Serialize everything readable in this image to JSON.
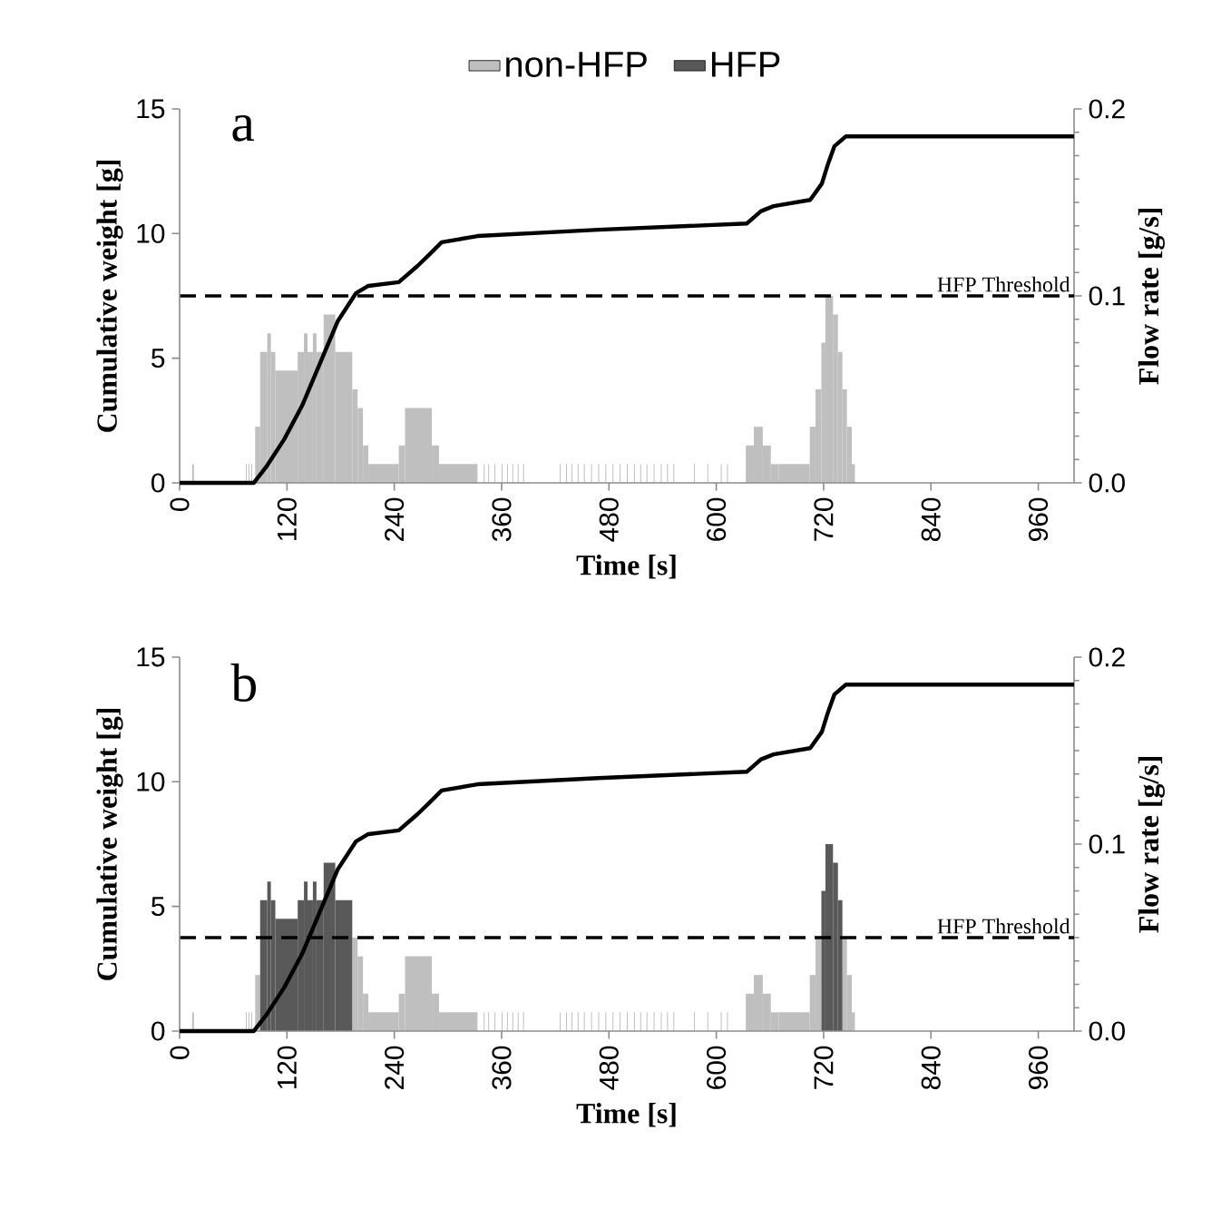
{
  "chart_data": [
    {
      "type": "histogram",
      "xlabel": "Time [s]",
      "ylabel": "Cumulative weight [g]",
      "y2label": "Flow rate [g/s]",
      "annotations": [
        "a"
      ],
      "xlim": [
        0,
        1000
      ],
      "xticks": [
        0,
        120,
        240,
        360,
        480,
        600,
        720,
        840,
        960
      ],
      "ylim": [
        0,
        15
      ],
      "yticks": [
        0,
        5,
        10,
        15
      ],
      "y2lim": [
        0,
        0.2
      ],
      "y2ticks": [
        {
          "value": 0,
          "label": "0.0"
        },
        {
          "value": 0.1,
          "label": "0.1"
        },
        {
          "value": 0.2,
          "label": "0.2"
        }
      ],
      "ref_lines": [
        {
          "axis": "y2",
          "value": 0.1,
          "label": "HFP Threshold",
          "color": "#000000",
          "line_style": "dashed"
        }
      ],
      "bins": [
        14,
        16,
        74,
        75,
        77,
        78,
        80,
        81,
        84.5,
        90,
        98,
        102,
        107,
        132,
        139,
        143,
        149,
        153,
        161,
        174,
        193,
        199,
        205,
        211,
        245,
        252,
        282,
        290,
        333,
        340,
        341,
        345,
        346,
        352,
        353,
        360,
        361,
        366,
        367,
        372,
        373,
        378,
        379,
        384,
        385,
        425,
        426,
        432,
        433,
        438,
        439,
        445,
        446,
        452,
        453,
        460,
        461,
        468,
        469,
        476,
        477,
        484,
        485,
        492,
        493,
        500,
        501,
        508,
        509,
        515,
        516,
        522,
        523,
        530,
        531,
        538,
        539,
        545,
        546,
        552,
        553,
        575,
        576,
        590,
        591,
        605,
        606,
        612,
        613,
        633,
        642,
        652,
        661,
        670,
        704.5,
        711,
        717.5,
        722,
        730.5,
        736,
        741,
        746,
        751.5,
        755
      ],
      "series": [
        {
          "axis": "y2",
          "color": "#bfbfbf",
          "values": [
            0.01,
            null,
            0.01,
            null,
            0.01,
            null,
            0.01,
            null,
            0.03,
            0.07,
            0.08,
            0.07,
            0.06,
            0.07,
            0.08,
            0.07,
            0.08,
            0.07,
            0.09,
            0.07,
            0.05,
            0.04,
            0.02,
            0.01,
            0.02,
            0.04,
            0.02,
            0.01,
            null,
            0.01,
            null,
            0.01,
            null,
            0.01,
            null,
            0.01,
            null,
            0.01,
            null,
            0.01,
            null,
            0.01,
            null,
            0.01,
            null,
            0.01,
            null,
            0.01,
            null,
            0.01,
            null,
            0.01,
            null,
            0.01,
            null,
            0.01,
            null,
            0.01,
            null,
            0.01,
            null,
            0.01,
            null,
            0.01,
            null,
            0.01,
            null,
            0.01,
            null,
            0.01,
            null,
            0.01,
            null,
            0.01,
            null,
            0.01,
            null,
            0.01,
            null,
            0.01,
            null,
            0.01,
            null,
            0.01,
            null,
            0.01,
            null,
            0.01,
            null,
            0.02,
            0.03,
            0.02,
            0.01,
            0.01,
            0.03,
            0.05,
            0.075,
            0.1,
            0.09,
            0.07,
            0.05,
            0.03,
            0.01
          ]
        },
        {
          "type": "line",
          "color": "#000000",
          "x": [
            0,
            83,
            97,
            117,
            137,
            157,
            177,
            197,
            211,
            245,
            266,
            279,
            293,
            333,
            468,
            634,
            650,
            664,
            705,
            718,
            725,
            732,
            745,
            1000
          ],
          "values": [
            0,
            0,
            0.65,
            1.75,
            3.1,
            4.8,
            6.5,
            7.6,
            7.9,
            8.05,
            8.7,
            9.15,
            9.65,
            9.9,
            10.15,
            10.4,
            10.9,
            11.1,
            11.35,
            12,
            12.8,
            13.5,
            13.9,
            13.9
          ]
        }
      ]
    },
    {
      "type": "histogram",
      "xlabel": "Time [s]",
      "ylabel": "Cumulative weight [g]",
      "y2label": "Flow rate [g/s]",
      "legend": "top",
      "annotations": [
        "b"
      ],
      "xlim": [
        0,
        1000
      ],
      "xticks": [
        0,
        120,
        240,
        360,
        480,
        600,
        720,
        840,
        960
      ],
      "ylim": [
        0,
        15
      ],
      "yticks": [
        0,
        5,
        10,
        15
      ],
      "y2lim": [
        0,
        0.2
      ],
      "y2ticks": [
        {
          "value": 0,
          "label": "0.0"
        },
        {
          "value": 0.1,
          "label": "0.1"
        },
        {
          "value": 0.2,
          "label": "0.2"
        }
      ],
      "ref_lines": [
        {
          "axis": "y2",
          "value": 0.05,
          "label": "HFP Threshold",
          "color": "#000000",
          "line_style": "dashed"
        }
      ],
      "bins": [
        14,
        16,
        74,
        75,
        77,
        78,
        80,
        81,
        84.5,
        90,
        98,
        102,
        107,
        132,
        139,
        143,
        149,
        153,
        161,
        174,
        193,
        199,
        205,
        211,
        245,
        252,
        282,
        290,
        333,
        340,
        341,
        345,
        346,
        352,
        353,
        360,
        361,
        366,
        367,
        372,
        373,
        378,
        379,
        384,
        385,
        425,
        426,
        432,
        433,
        438,
        439,
        445,
        446,
        452,
        453,
        460,
        461,
        468,
        469,
        476,
        477,
        484,
        485,
        492,
        493,
        500,
        501,
        508,
        509,
        515,
        516,
        522,
        523,
        530,
        531,
        538,
        539,
        545,
        546,
        552,
        553,
        575,
        576,
        590,
        591,
        605,
        606,
        612,
        613,
        633,
        642,
        652,
        661,
        670,
        704.5,
        711,
        717.5,
        722,
        730.5,
        736,
        741,
        746,
        751.5,
        755
      ],
      "series": [
        {
          "name": "non-HFP",
          "axis": "y2",
          "color": "#bfbfbf",
          "values": [
            0.01,
            null,
            0.01,
            null,
            0.01,
            null,
            0.01,
            null,
            0.03,
            null,
            null,
            null,
            null,
            null,
            null,
            null,
            null,
            null,
            null,
            null,
            0.05,
            0.04,
            0.02,
            0.01,
            0.02,
            0.04,
            0.02,
            0.01,
            null,
            0.01,
            null,
            0.01,
            null,
            0.01,
            null,
            0.01,
            null,
            0.01,
            null,
            0.01,
            null,
            0.01,
            null,
            0.01,
            null,
            0.01,
            null,
            0.01,
            null,
            0.01,
            null,
            0.01,
            null,
            0.01,
            null,
            0.01,
            null,
            0.01,
            null,
            0.01,
            null,
            0.01,
            null,
            0.01,
            null,
            0.01,
            null,
            0.01,
            null,
            0.01,
            null,
            0.01,
            null,
            0.01,
            null,
            0.01,
            null,
            0.01,
            null,
            0.01,
            null,
            0.01,
            null,
            0.01,
            null,
            0.01,
            null,
            0.01,
            null,
            0.02,
            0.03,
            0.02,
            0.01,
            0.01,
            0.03,
            0.05,
            null,
            null,
            null,
            null,
            0.05,
            0.03,
            0.01
          ]
        },
        {
          "name": "HFP",
          "axis": "y2",
          "color": "#595959",
          "values": [
            null,
            null,
            null,
            null,
            null,
            null,
            null,
            null,
            null,
            0.07,
            0.08,
            0.07,
            0.06,
            0.07,
            0.08,
            0.07,
            0.08,
            0.07,
            0.09,
            0.07,
            null,
            null,
            null,
            null,
            null,
            null,
            null,
            null,
            null,
            null,
            null,
            null,
            null,
            null,
            null,
            null,
            null,
            null,
            null,
            null,
            null,
            null,
            null,
            null,
            null,
            null,
            null,
            null,
            null,
            null,
            null,
            null,
            null,
            null,
            null,
            null,
            null,
            null,
            null,
            null,
            null,
            null,
            null,
            null,
            null,
            null,
            null,
            null,
            null,
            null,
            null,
            null,
            null,
            null,
            null,
            null,
            null,
            null,
            null,
            null,
            null,
            null,
            null,
            null,
            null,
            null,
            null,
            null,
            null,
            null,
            null,
            null,
            null,
            null,
            null,
            null,
            0.075,
            0.1,
            0.09,
            0.07,
            null,
            null,
            null
          ]
        },
        {
          "type": "line",
          "color": "#000000",
          "x": [
            0,
            83,
            97,
            117,
            137,
            157,
            177,
            197,
            211,
            245,
            266,
            279,
            293,
            333,
            468,
            634,
            650,
            664,
            705,
            718,
            725,
            732,
            745,
            1000
          ],
          "values": [
            0,
            0,
            0.65,
            1.75,
            3.1,
            4.8,
            6.5,
            7.6,
            7.9,
            8.05,
            8.7,
            9.15,
            9.65,
            9.9,
            10.15,
            10.4,
            10.9,
            11.1,
            11.35,
            12,
            12.8,
            13.5,
            13.9,
            13.9
          ]
        }
      ]
    }
  ]
}
